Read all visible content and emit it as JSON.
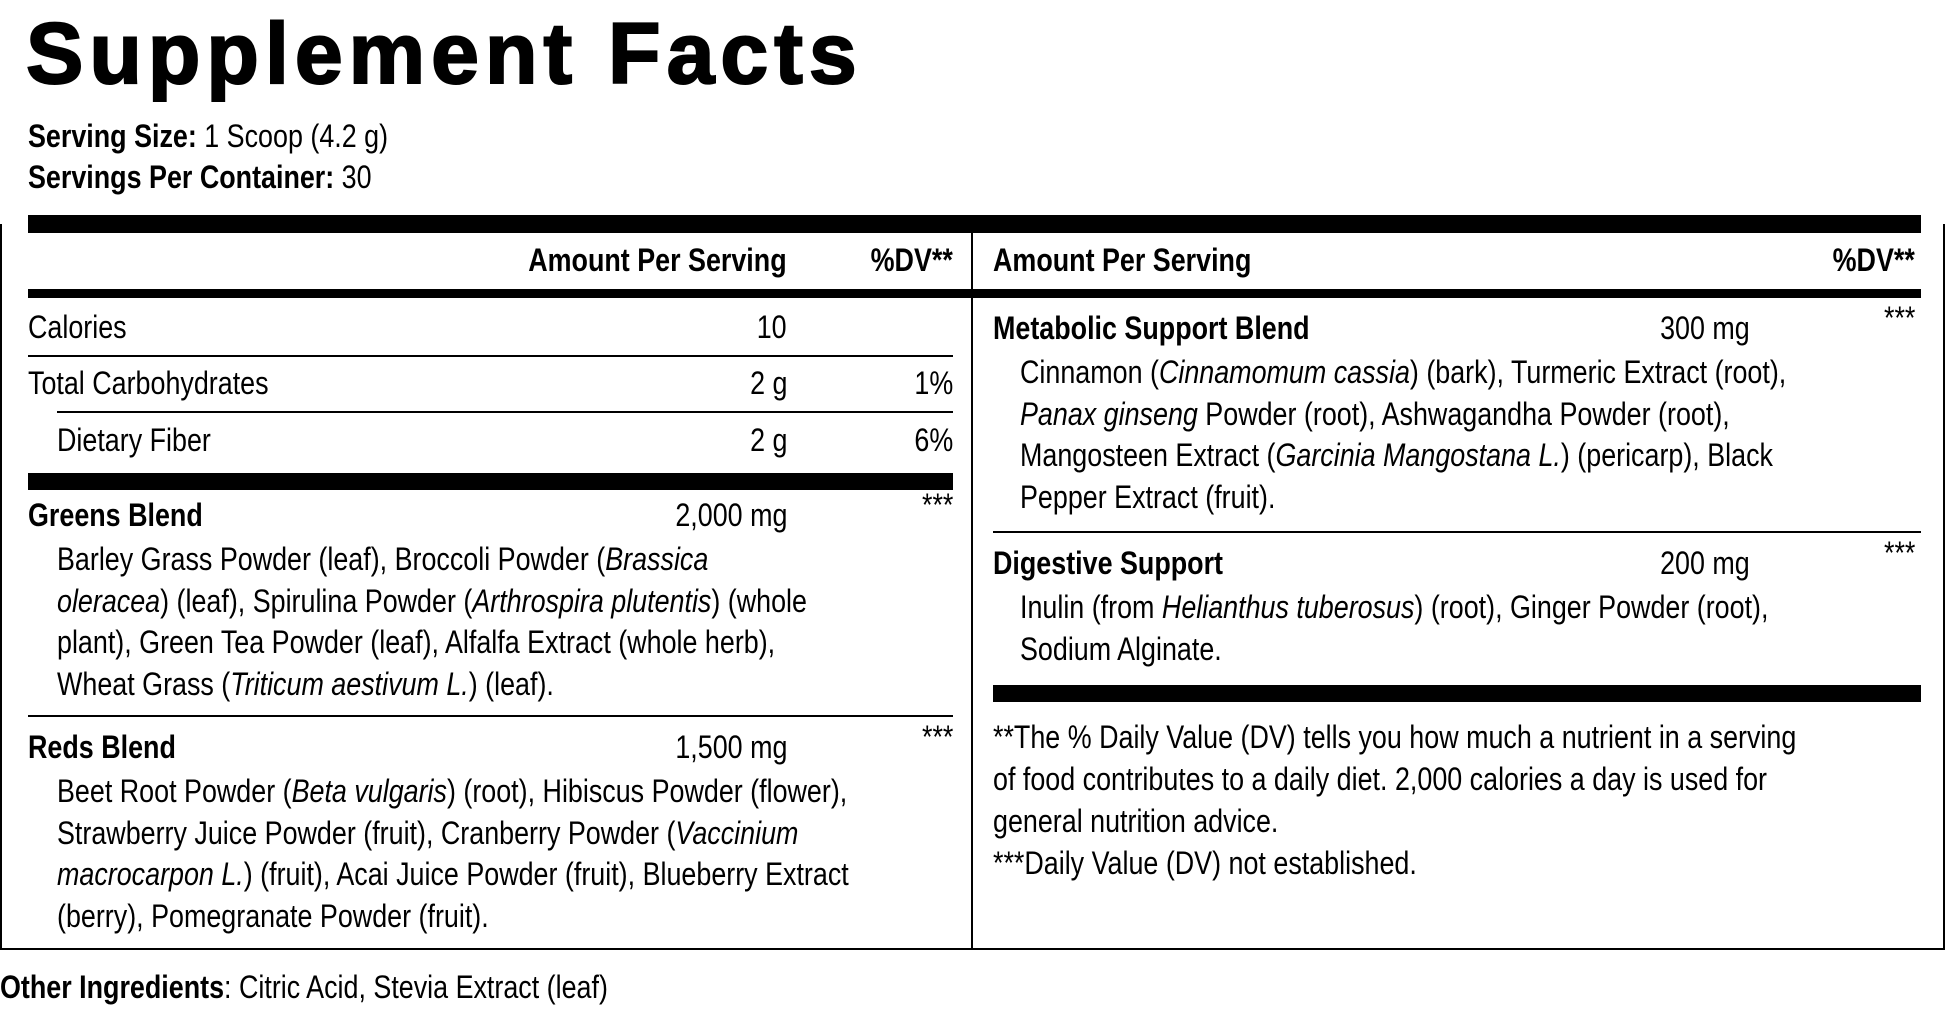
{
  "title": "Supplement Facts",
  "serving": {
    "size_label": "Serving Size:",
    "size_value": " 1 Scoop (4.2 g)",
    "per_label": "Servings Per Container:",
    "per_value": " 30"
  },
  "left_header": {
    "amount": "Amount Per Serving",
    "dv": "%DV**"
  },
  "right_header": {
    "amount": "Amount Per Serving",
    "dv": "%DV**"
  },
  "nutrients": [
    {
      "name": "Calories",
      "amount": "10",
      "dv": ""
    },
    {
      "name": "Total Carbohydrates",
      "amount": "2 g",
      "dv": "1%"
    },
    {
      "name": "Dietary Fiber",
      "amount": "2 g",
      "dv": "6%"
    }
  ],
  "blends": [
    {
      "name": "Greens Blend",
      "amount": "2,000 mg",
      "dv": "***",
      "lines": [
        [
          {
            "t": "Barley Grass Powder (leaf), Broccoli Powder ("
          },
          {
            "t": "Brassica",
            "i": true
          }
        ],
        [
          {
            "t": "oleracea",
            "i": true
          },
          {
            "t": ") (leaf), Spirulina Powder ("
          },
          {
            "t": "Arthrospira plutentis",
            "i": true
          },
          {
            "t": ") (whole"
          }
        ],
        [
          {
            "t": "plant), Green Tea Powder (leaf), Alfalfa Extract (whole herb),"
          }
        ],
        [
          {
            "t": "Wheat Grass ("
          },
          {
            "t": "Triticum aestivum L.",
            "i": true
          },
          {
            "t": ") (leaf)."
          }
        ]
      ]
    },
    {
      "name": "Reds Blend",
      "amount": "1,500 mg",
      "dv": "***",
      "lines": [
        [
          {
            "t": "Beet Root Powder ("
          },
          {
            "t": "Beta vulgaris",
            "i": true
          },
          {
            "t": ") (root), Hibiscus Powder (flower),"
          }
        ],
        [
          {
            "t": "Strawberry Juice Powder (fruit), Cranberry Powder ("
          },
          {
            "t": "Vaccinium",
            "i": true
          }
        ],
        [
          {
            "t": "macrocarpon L.",
            "i": true
          },
          {
            "t": ") (fruit), Acai Juice Powder (fruit), Blueberry Extract"
          }
        ],
        [
          {
            "t": "(berry), Pomegranate Powder (fruit)."
          }
        ]
      ]
    },
    {
      "name": "Metabolic Support Blend",
      "amount": "300 mg",
      "dv": "***",
      "lines": [
        [
          {
            "t": "Cinnamon ("
          },
          {
            "t": "Cinnamomum cassia",
            "i": true
          },
          {
            "t": ") (bark), Turmeric Extract (root),"
          }
        ],
        [
          {
            "t": "Panax ginseng",
            "i": true
          },
          {
            "t": " Powder (root), Ashwagandha Powder (root),"
          }
        ],
        [
          {
            "t": "Mangosteen Extract ("
          },
          {
            "t": "Garcinia Mangostana L.",
            "i": true
          },
          {
            "t": ") (pericarp), Black"
          }
        ],
        [
          {
            "t": "Pepper Extract (fruit)."
          }
        ]
      ]
    },
    {
      "name": "Digestive Support",
      "amount": "200 mg",
      "dv": "***",
      "lines": [
        [
          {
            "t": "Inulin (from "
          },
          {
            "t": "Helianthus tuberosus",
            "i": true
          },
          {
            "t": ") (root), Ginger Powder (root),"
          }
        ],
        [
          {
            "t": "Sodium Alginate."
          }
        ]
      ]
    }
  ],
  "footnotes": [
    "**The % Daily Value (DV) tells you how much a nutrient in a serving",
    "of food contributes to a daily diet. 2,000 calories a day is used for",
    "general nutrition advice.",
    "***Daily Value (DV) not established."
  ],
  "other": {
    "label": "Other Ingredients",
    "text": ": Citric Acid, Stevia Extract (leaf)"
  }
}
